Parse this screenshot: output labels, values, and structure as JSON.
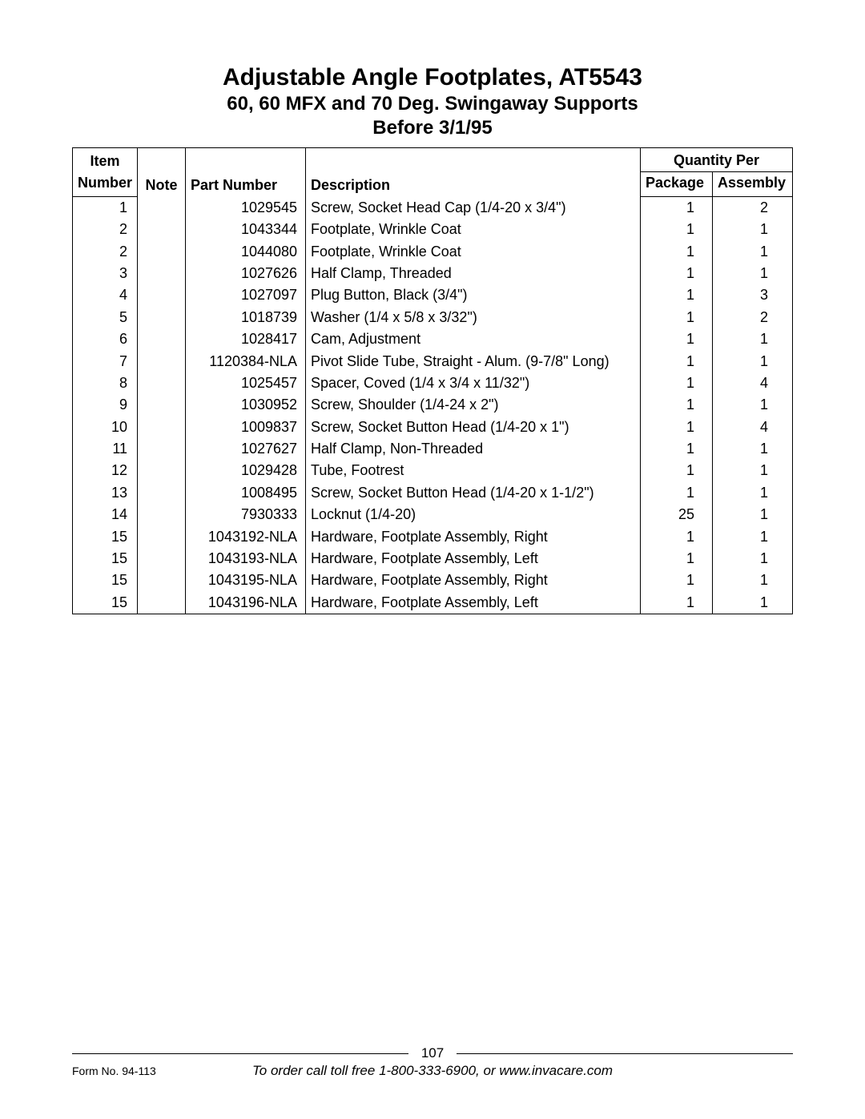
{
  "header": {
    "title": "Adjustable Angle Footplates, AT5543",
    "subtitle": "60, 60 MFX and 70 Deg. Swingaway Supports",
    "subtitle2": "Before 3/1/95"
  },
  "table": {
    "columns": {
      "item_top": "Item",
      "item": "Number",
      "note": "Note",
      "part": "Part Number",
      "desc": "Description",
      "qty_span": "Quantity Per",
      "pkg": "Package",
      "asm": "Assembly"
    },
    "rows": [
      {
        "item": "1",
        "note": "",
        "part": "1029545",
        "desc": "Screw, Socket Head Cap (1/4-20 x 3/4\")",
        "pkg": "1",
        "asm": "2"
      },
      {
        "item": "2",
        "note": "",
        "part": "1043344",
        "desc": "Footplate, Wrinkle Coat",
        "pkg": "1",
        "asm": "1"
      },
      {
        "item": "2",
        "note": "",
        "part": "1044080",
        "desc": "Footplate, Wrinkle Coat",
        "pkg": "1",
        "asm": "1"
      },
      {
        "item": "3",
        "note": "",
        "part": "1027626",
        "desc": "Half Clamp, Threaded",
        "pkg": "1",
        "asm": "1"
      },
      {
        "item": "4",
        "note": "",
        "part": "1027097",
        "desc": "Plug Button, Black (3/4\")",
        "pkg": "1",
        "asm": "3"
      },
      {
        "item": "5",
        "note": "",
        "part": "1018739",
        "desc": "Washer (1/4 x 5/8 x 3/32\")",
        "pkg": "1",
        "asm": "2"
      },
      {
        "item": "6",
        "note": "",
        "part": "1028417",
        "desc": "Cam, Adjustment",
        "pkg": "1",
        "asm": "1"
      },
      {
        "item": "7",
        "note": "",
        "part": "1120384-NLA",
        "desc": "Pivot Slide Tube, Straight - Alum. (9-7/8\" Long)",
        "pkg": "1",
        "asm": "1"
      },
      {
        "item": "8",
        "note": "",
        "part": "1025457",
        "desc": "Spacer, Coved (1/4 x 3/4 x 11/32\")",
        "pkg": "1",
        "asm": "4"
      },
      {
        "item": "9",
        "note": "",
        "part": "1030952",
        "desc": "Screw, Shoulder (1/4-24 x 2\")",
        "pkg": "1",
        "asm": "1"
      },
      {
        "item": "10",
        "note": "",
        "part": "1009837",
        "desc": "Screw, Socket Button Head (1/4-20 x 1\")",
        "pkg": "1",
        "asm": "4"
      },
      {
        "item": "11",
        "note": "",
        "part": "1027627",
        "desc": "Half Clamp, Non-Threaded",
        "pkg": "1",
        "asm": "1"
      },
      {
        "item": "12",
        "note": "",
        "part": "1029428",
        "desc": "Tube, Footrest",
        "pkg": "1",
        "asm": "1"
      },
      {
        "item": "13",
        "note": "",
        "part": "1008495",
        "desc": "Screw, Socket Button Head (1/4-20 x 1-1/2\")",
        "pkg": "1",
        "asm": "1"
      },
      {
        "item": "14",
        "note": "",
        "part": "7930333",
        "desc": "Locknut (1/4-20)",
        "pkg": "25",
        "asm": "1"
      },
      {
        "item": "15",
        "note": "",
        "part": "1043192-NLA",
        "desc": "Hardware, Footplate Assembly, Right",
        "pkg": "1",
        "asm": "1"
      },
      {
        "item": "15",
        "note": "",
        "part": "1043193-NLA",
        "desc": "Hardware, Footplate Assembly, Left",
        "pkg": "1",
        "asm": "1"
      },
      {
        "item": "15",
        "note": "",
        "part": "1043195-NLA",
        "desc": "Hardware, Footplate Assembly, Right",
        "pkg": "1",
        "asm": "1"
      },
      {
        "item": "15",
        "note": "",
        "part": "1043196-NLA",
        "desc": "Hardware, Footplate Assembly, Left",
        "pkg": "1",
        "asm": "1"
      }
    ]
  },
  "footer": {
    "page": "107",
    "form": "Form No. 94-113",
    "order": "To order call toll free 1-800-333-6900, or www.invacare.com"
  }
}
